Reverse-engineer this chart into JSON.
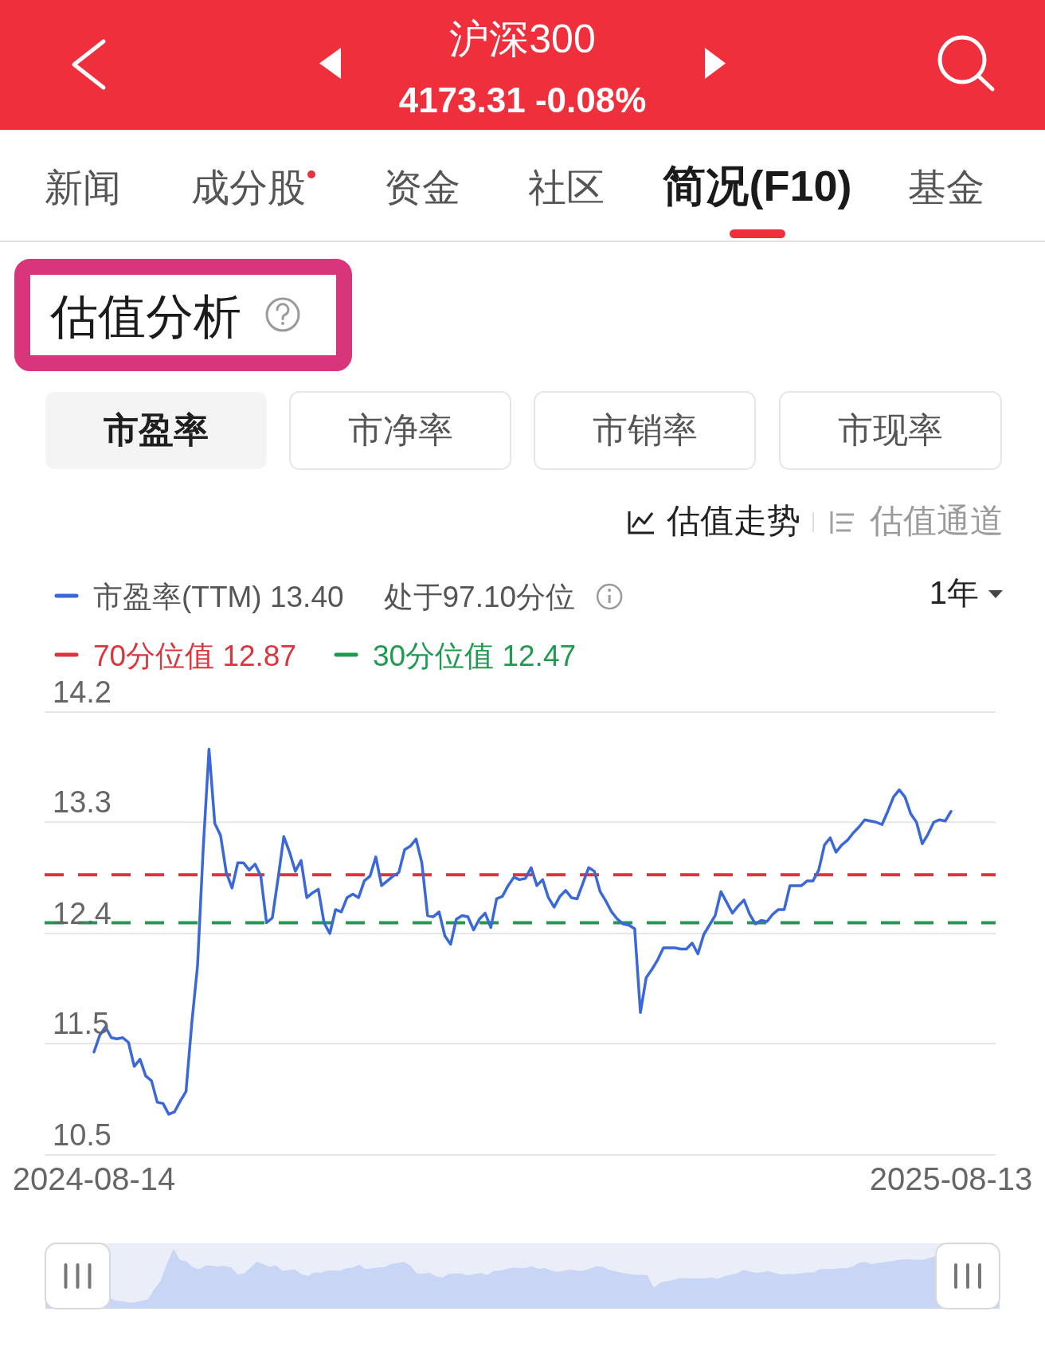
{
  "chart_data": {
    "type": "line",
    "title": "沪深300",
    "subtitle": "4173.31 -0.08%",
    "annotations": [
      "新闻",
      "成分股",
      "资金",
      "社区",
      "简况(F10)",
      "基金",
      "估值分析",
      "市盈率",
      "市净率",
      "市销率",
      "市现率",
      "估值走势",
      "估值通道",
      "处于97.10分位",
      "1年"
    ],
    "categories": [
      "2024-08-14",
      null,
      null,
      null,
      null,
      null,
      null,
      null,
      null,
      null,
      null,
      null,
      null,
      null,
      null,
      null,
      null,
      null,
      null,
      null,
      null,
      null,
      null,
      null,
      null,
      null,
      null,
      null,
      null,
      null,
      null,
      null,
      null,
      null,
      null,
      null,
      null,
      null,
      null,
      null,
      null,
      null,
      null,
      null,
      null,
      null,
      null,
      null,
      null,
      null,
      null,
      null,
      null,
      null,
      null,
      null,
      null,
      null,
      null,
      null,
      null,
      null,
      null,
      null,
      null,
      null,
      null,
      null,
      null,
      null,
      null,
      null,
      null,
      null,
      null,
      null,
      null,
      null,
      null,
      null,
      null,
      null,
      null,
      null,
      null,
      null,
      null,
      null,
      null,
      null,
      null,
      null,
      null,
      null,
      null,
      null,
      null,
      null,
      null,
      null,
      null,
      null,
      null,
      null,
      null,
      null,
      null,
      null,
      null,
      null,
      null,
      null,
      null,
      null,
      null,
      null,
      null,
      null,
      null,
      null,
      null,
      null,
      null,
      null,
      null,
      null,
      null,
      null,
      null,
      null,
      null,
      null,
      null,
      null,
      null,
      null,
      null,
      null,
      null,
      null,
      null,
      null,
      null,
      null,
      null,
      null,
      null,
      null,
      null,
      "2025-08-13"
    ],
    "series": [
      {
        "name": "市盈率(TTM) 13.40",
        "color": "#3b68d8",
        "values": [
          11.39,
          11.53,
          11.6,
          11.51,
          11.5,
          11.51,
          11.47,
          11.27,
          11.33,
          11.19,
          11.15,
          10.97,
          10.96,
          10.87,
          10.89,
          10.98,
          11.06,
          11.63,
          12.11,
          13.1,
          13.92,
          13.3,
          13.2,
          12.89,
          12.76,
          12.97,
          12.97,
          12.91,
          12.96,
          12.86,
          12.47,
          12.51,
          12.84,
          13.19,
          13.06,
          12.9,
          12.99,
          12.68,
          12.72,
          12.75,
          12.47,
          12.38,
          12.58,
          12.56,
          12.68,
          12.71,
          12.68,
          12.82,
          12.86,
          13.02,
          12.78,
          12.82,
          12.86,
          12.89,
          13.08,
          13.11,
          13.17,
          12.97,
          12.53,
          12.52,
          12.56,
          12.36,
          12.29,
          12.5,
          12.53,
          12.52,
          12.41,
          12.5,
          12.55,
          12.43,
          12.67,
          12.69,
          12.78,
          12.85,
          12.83,
          12.84,
          12.93,
          12.78,
          12.83,
          12.68,
          12.6,
          12.69,
          12.74,
          12.68,
          12.67,
          12.8,
          12.93,
          12.9,
          12.73,
          12.65,
          12.56,
          12.5,
          12.46,
          12.45,
          12.42,
          11.72,
          12.01,
          12.08,
          12.16,
          12.26,
          12.26,
          12.26,
          12.25,
          12.25,
          12.3,
          12.21,
          12.37,
          12.45,
          12.53,
          12.73,
          12.64,
          12.55,
          12.61,
          12.66,
          12.54,
          12.46,
          12.49,
          12.48,
          12.54,
          12.58,
          12.58,
          12.78,
          12.78,
          12.78,
          12.82,
          12.82,
          12.91,
          13.12,
          13.18,
          13.06,
          13.12,
          13.16,
          13.22,
          13.27,
          13.33,
          13.32,
          13.31,
          13.29,
          13.4,
          13.52,
          13.58,
          13.52,
          13.38,
          13.31,
          13.13,
          13.21,
          13.31,
          13.33,
          13.32,
          13.4
        ]
      }
    ],
    "ref_lines": [
      {
        "axis": "y",
        "value": 12.87,
        "label": "70分位值 12.87",
        "color": "#d9363e",
        "line_style": "dashed"
      },
      {
        "axis": "y",
        "value": 12.47,
        "label": "30分位值 12.47",
        "color": "#1f9a4e",
        "line_style": "dashed"
      }
    ],
    "ylim": [
      10.53,
      14.23
    ],
    "yticks": [
      {
        "value": 14.23,
        "label": "14.2"
      },
      {
        "value": 13.31,
        "label": "13.3"
      },
      {
        "value": 12.38,
        "label": "12.4"
      },
      {
        "value": 11.46,
        "label": "11.5"
      },
      {
        "value": 10.53,
        "label": "10.5"
      }
    ],
    "grid": "y",
    "legend": "top left"
  }
}
